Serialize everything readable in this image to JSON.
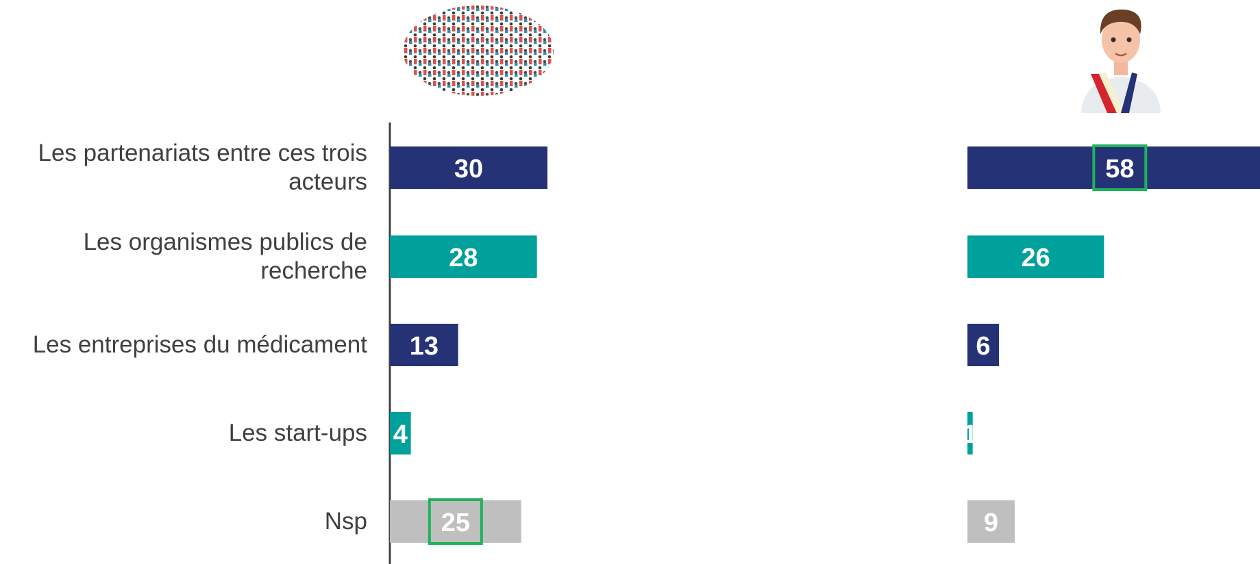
{
  "chart_data": [
    {
      "type": "bar",
      "categories": [
        "Les partenariats entre ces trois acteurs",
        "Les organismes publics de recherche",
        "Les entreprises du médicament",
        "Les start-ups",
        "Nsp"
      ],
      "values": [
        30,
        28,
        13,
        4,
        25
      ],
      "colors": [
        "#253376",
        "#00a09b",
        "#253376",
        "#00a09b",
        "#bfbfbf"
      ],
      "xlim": [
        0,
        60
      ],
      "highlighted": 4
    },
    {
      "type": "bar",
      "values": [
        58,
        26,
        6,
        1,
        9
      ],
      "colors": [
        "#253376",
        "#00a09b",
        "#253376",
        "#00a09b",
        "#bfbfbf"
      ],
      "xlim": [
        0,
        60
      ],
      "highlighted": 0
    }
  ]
}
